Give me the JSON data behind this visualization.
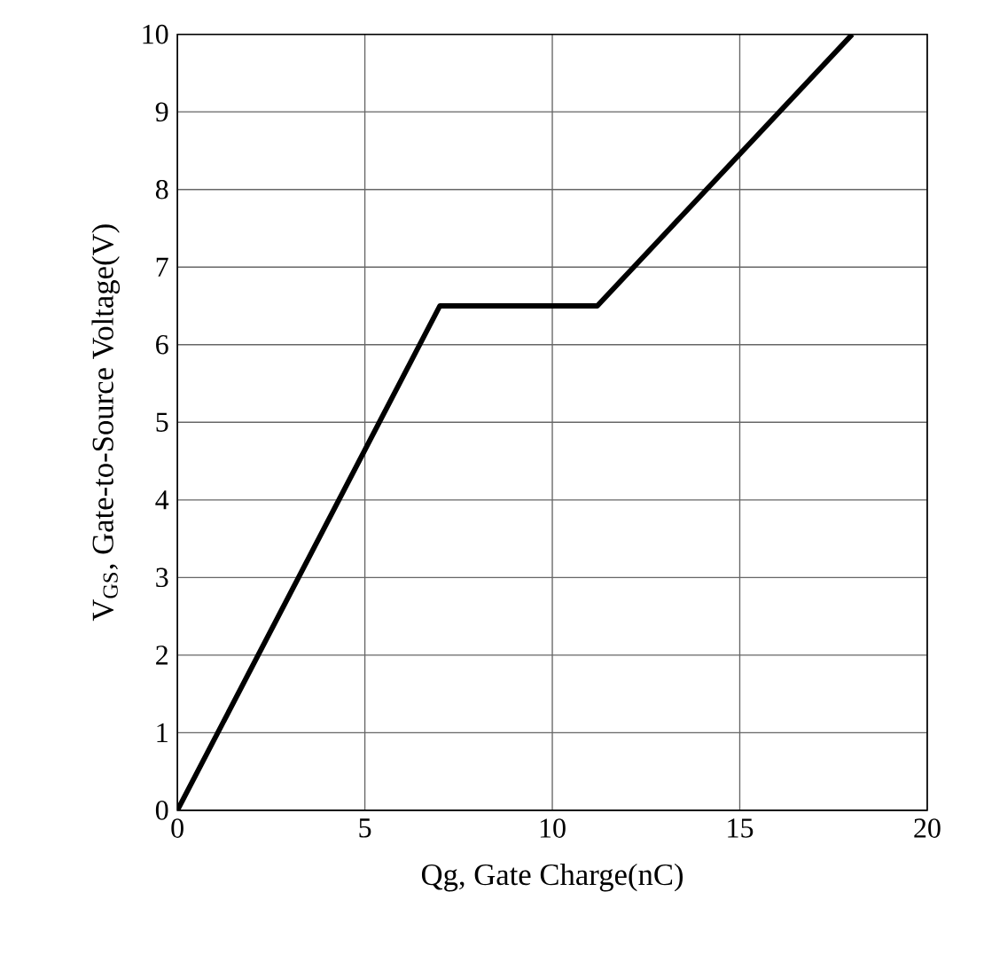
{
  "chart_data": {
    "type": "line",
    "xlabel": "Qg, Gate Charge(nC)",
    "ylabel": "V$_{GS}$, Gate-to-Source Voltage(V)",
    "series": [
      {
        "color": "#000000",
        "x": [
          0,
          7,
          11.2,
          18
        ],
        "values": [
          0,
          6.5,
          6.5,
          10
        ]
      }
    ],
    "xlim": [
      0,
      20
    ],
    "xticks": [
      0,
      5,
      10,
      15,
      20
    ],
    "ylim": [
      0,
      10
    ],
    "yticks": [
      0,
      1,
      2,
      3,
      4,
      5,
      6,
      7,
      8,
      9,
      10
    ],
    "grid": true,
    "marker": "none",
    "line_style": "solid"
  }
}
